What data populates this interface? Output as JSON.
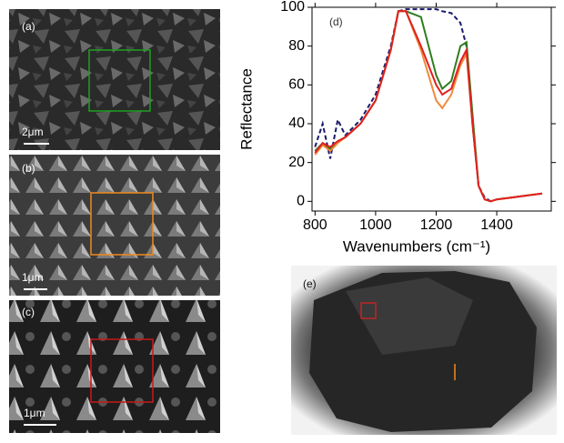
{
  "panels": [
    {
      "label": "(a)",
      "scale_bar": "2μm"
    },
    {
      "label": "(b)",
      "scale_bar": "1μm"
    },
    {
      "label": "(c)",
      "scale_bar": "1μm"
    },
    {
      "label": "(e)"
    }
  ],
  "chart_data": {
    "type": "line",
    "annotation": "(d)",
    "x_label": "Wavenumbers (cm⁻¹)",
    "y_label": "Reflectance",
    "x": [
      800,
      825,
      850,
      875,
      900,
      950,
      1000,
      1050,
      1075,
      1100,
      1150,
      1200,
      1220,
      1250,
      1280,
      1300,
      1320,
      1340,
      1360,
      1380,
      1400,
      1450,
      1500,
      1550
    ],
    "series": [
      {
        "color": "#1a1a6e",
        "dashed": true,
        "values": [
          28,
          40,
          22,
          42,
          34,
          42,
          55,
          80,
          98,
          99,
          99,
          99,
          98,
          97,
          92,
          80,
          40,
          8,
          2,
          0,
          1,
          2,
          3,
          4
        ]
      },
      {
        "color": "#2e7d1e",
        "dashed": false,
        "values": [
          26,
          30,
          27,
          31,
          33,
          40,
          52,
          78,
          98,
          98,
          95,
          65,
          58,
          62,
          80,
          82,
          45,
          8,
          1,
          0,
          1,
          2,
          3,
          4
        ]
      },
      {
        "color": "#f08a3c",
        "dashed": false,
        "values": [
          24,
          29,
          26,
          30,
          33,
          40,
          52,
          78,
          98,
          98,
          78,
          52,
          48,
          55,
          70,
          76,
          40,
          8,
          1,
          0,
          1,
          2,
          3,
          4
        ]
      },
      {
        "color": "#e02020",
        "dashed": false,
        "values": [
          25,
          30,
          28,
          31,
          33,
          40,
          52,
          78,
          98,
          98,
          80,
          60,
          55,
          58,
          72,
          78,
          40,
          8,
          1,
          0,
          1,
          2,
          3,
          4
        ]
      }
    ],
    "xlim": [
      790,
      1580
    ],
    "ylim": [
      -5,
      100
    ],
    "xticks": [
      800,
      1000,
      1200,
      1400
    ],
    "yticks": [
      0,
      20,
      40,
      60,
      80,
      100
    ]
  }
}
